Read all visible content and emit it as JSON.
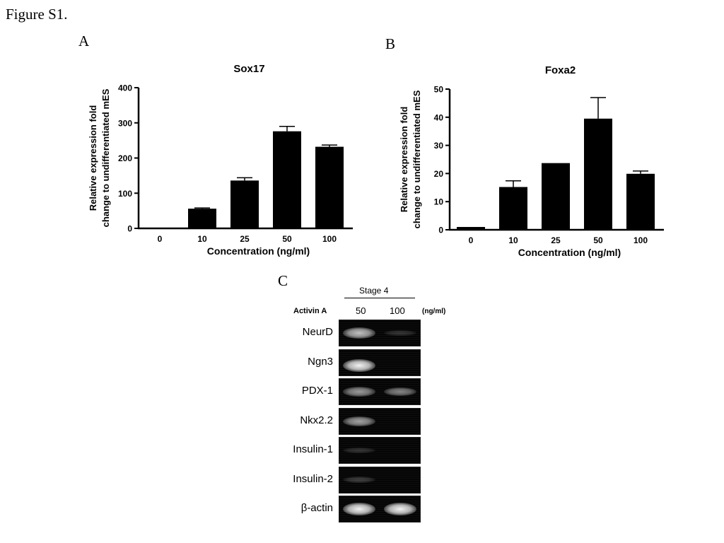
{
  "figure_title": "Figure S1.",
  "panels": {
    "a": "A",
    "b": "B",
    "c": "C"
  },
  "chart_data": [
    {
      "type": "bar",
      "title": "Sox17",
      "xlabel": "Concentration (ng/ml)",
      "ylabel_lines": [
        "Relative expression fold",
        "change to undifferentiated mES"
      ],
      "categories": [
        "0",
        "10",
        "25",
        "50",
        "100"
      ],
      "values": [
        1,
        56,
        136,
        276,
        232
      ],
      "errors": [
        0,
        2,
        8,
        14,
        5
      ],
      "ylim": [
        0,
        400
      ],
      "yticks": [
        "0",
        "100",
        "200",
        "300",
        "400"
      ],
      "grid": false,
      "bar_color": "#000000"
    },
    {
      "type": "bar",
      "title": "Foxa2",
      "xlabel": "Concentration (ng/ml)",
      "ylabel_lines": [
        "Relative expression fold",
        "change to undifferentiated mES"
      ],
      "categories": [
        "0",
        "10",
        "25",
        "50",
        "100"
      ],
      "values": [
        1,
        15.2,
        23.7,
        39.5,
        19.9
      ],
      "errors": [
        0,
        2.2,
        0,
        7.5,
        1.0
      ],
      "ylim": [
        0,
        50
      ],
      "yticks": [
        "0",
        "10",
        "20",
        "30",
        "40",
        "50"
      ],
      "grid": false,
      "bar_color": "#000000"
    }
  ],
  "gel": {
    "stage": "Stage 4",
    "treatment": "Activin A",
    "lanes": [
      "50",
      "100"
    ],
    "unit": "(ng/ml)",
    "rows": [
      {
        "label": "NeurD",
        "bands": [
          0.75,
          0.05
        ]
      },
      {
        "label": "Ngn3",
        "bands": [
          1.0,
          0.0
        ]
      },
      {
        "label": "PDX-1",
        "bands": [
          0.55,
          0.45
        ]
      },
      {
        "label": "Nkx2.2",
        "bands": [
          0.6,
          0.0
        ]
      },
      {
        "label": "Insulin-1",
        "bands": [
          0.05,
          0.0
        ]
      },
      {
        "label": "Insulin-2",
        "bands": [
          0.1,
          0.0
        ]
      },
      {
        "label": "β-actin",
        "bands": [
          1.0,
          1.0
        ]
      }
    ]
  }
}
